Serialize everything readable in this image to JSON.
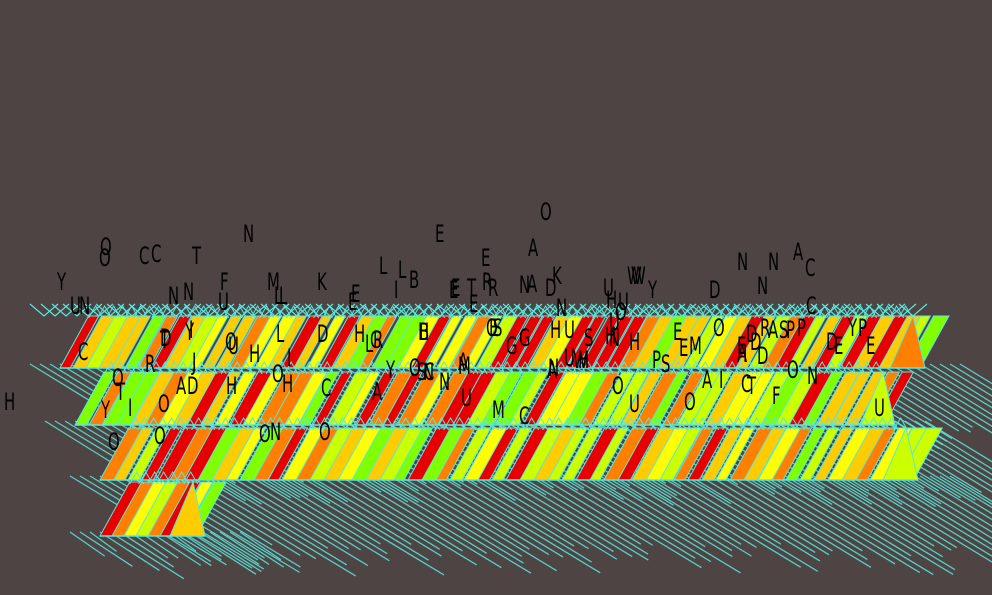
{
  "canvas": {
    "background": "#4d4443",
    "stroke_color": "#5ae7de",
    "fill_palette": [
      "#e60000",
      "#ff8000",
      "#ffcc00",
      "#ffff00",
      "#ccff00",
      "#80ff00"
    ],
    "glyph_color": "#000000"
  },
  "glyphs": [
    "O",
    "N",
    "E",
    "E",
    "A",
    "A",
    "O",
    "C",
    "C",
    "A",
    "O",
    "N",
    "T",
    "F",
    "M",
    "K",
    "L",
    "L",
    "B",
    "E",
    "T",
    "R",
    "N",
    "D",
    "K",
    "W",
    "U",
    "W",
    "N",
    "D",
    "N",
    "N",
    "C",
    "Y",
    "U",
    "N",
    "N",
    "L",
    "L",
    "E",
    "I",
    "R",
    "E",
    "U",
    "E",
    "E",
    "N",
    "H",
    "U",
    "O",
    "S",
    "O",
    "U",
    "S",
    "S",
    "P",
    "P",
    "C",
    "Y",
    "I",
    "T",
    "Y",
    "D",
    "Y",
    "O",
    "L",
    "L",
    "D",
    "H",
    "G",
    "R",
    "B",
    "H",
    "E",
    "G",
    "H",
    "H",
    "U",
    "E",
    "M",
    "R",
    "H",
    "E",
    "O",
    "D",
    "A",
    "E",
    "P",
    "D",
    "D",
    "E",
    "C",
    "R",
    "J",
    "U",
    "H",
    "I",
    "O",
    "N",
    "A",
    "H",
    "G",
    "S",
    "N",
    "U",
    "W",
    "P",
    "N",
    "E",
    "I",
    "A",
    "D",
    "O",
    "T",
    "A",
    "D",
    "H",
    "H",
    "Y",
    "C",
    "N",
    "M",
    "A",
    "O",
    "S",
    "A",
    "I",
    "C",
    "T",
    "O",
    "N",
    "H",
    "Y",
    "I",
    "O",
    "O",
    "A",
    "C",
    "U",
    "M",
    "C",
    "U",
    "O",
    "F",
    "U",
    "O",
    "O",
    "O",
    "N",
    "O"
  ]
}
